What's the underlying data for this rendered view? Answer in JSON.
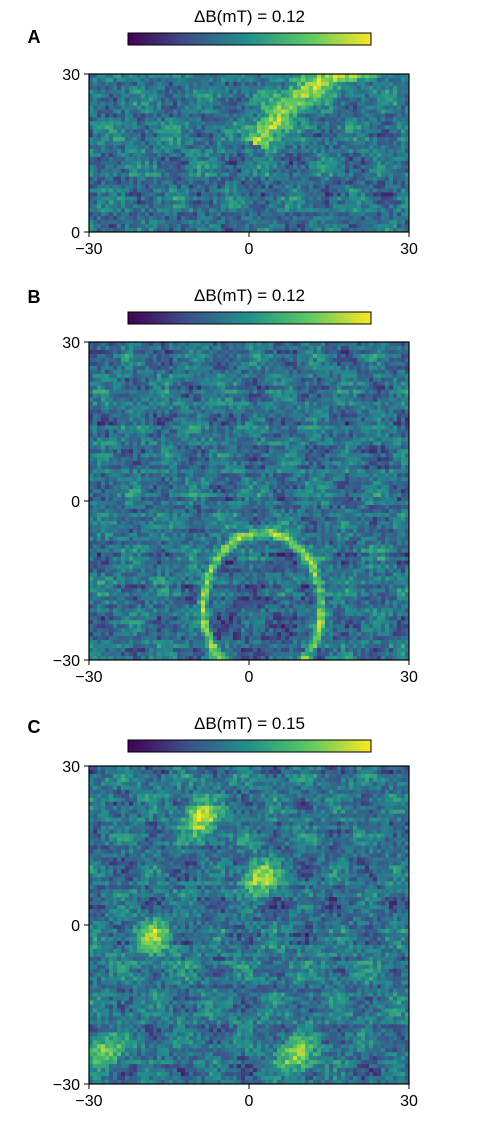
{
  "chart_data": [
    {
      "type": "heatmap",
      "panel": "A",
      "colorbar_title": "ΔB(mT) = 0.12",
      "colormap": [
        "#440154",
        "#3b528b",
        "#21918c",
        "#5ec962",
        "#fde725"
      ],
      "xlim": [
        -30,
        30
      ],
      "ylim": [
        0,
        30
      ],
      "xticks": [
        "−30",
        "0",
        "30"
      ],
      "yticks": [
        "0",
        "30"
      ],
      "features": [
        {
          "shape": "arc",
          "cx": 30,
          "cy": 0,
          "r": 33,
          "from_deg": 96,
          "to_deg": 150,
          "level": 0.9
        }
      ]
    },
    {
      "type": "heatmap",
      "panel": "B",
      "colorbar_title": "ΔB(mT) = 0.12",
      "colormap": [
        "#440154",
        "#3b528b",
        "#21918c",
        "#5ec962",
        "#fde725"
      ],
      "xlim": [
        -30,
        30
      ],
      "ylim": [
        -30,
        30
      ],
      "xticks": [
        "−30",
        "0",
        "30"
      ],
      "yticks": [
        "−30",
        "0",
        "30"
      ],
      "features": [
        {
          "shape": "ellipse",
          "cx": 2.5,
          "cy": -20,
          "rx": 11,
          "ry": 14,
          "level": 0.85
        }
      ]
    },
    {
      "type": "heatmap",
      "panel": "C",
      "colorbar_title": "ΔB(mT) = 0.15",
      "colormap": [
        "#440154",
        "#3b528b",
        "#21918c",
        "#5ec962",
        "#fde725"
      ],
      "xlim": [
        -30,
        30
      ],
      "ylim": [
        -30,
        30
      ],
      "xticks": [
        "−30",
        "0",
        "30"
      ],
      "yticks": [
        "−30",
        "0",
        "30"
      ],
      "features": [
        {
          "shape": "blob",
          "cx": -9,
          "cy": 20,
          "level": 1.0
        },
        {
          "shape": "blob",
          "cx": 2,
          "cy": 9,
          "level": 0.95
        },
        {
          "shape": "blob",
          "cx": -18,
          "cy": -2,
          "level": 0.8
        },
        {
          "shape": "blob",
          "cx": 9,
          "cy": -25,
          "level": 0.9
        },
        {
          "shape": "blob",
          "cx": -27,
          "cy": -24,
          "level": 0.75
        }
      ]
    }
  ]
}
